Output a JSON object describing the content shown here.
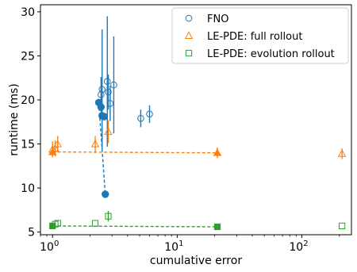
{
  "chart_data": {
    "type": "scatter",
    "xscale": "log",
    "xlabel": "cumulative error",
    "ylabel": "runtime (ms)",
    "xlim": [
      0.8,
      250
    ],
    "ylim": [
      4.7,
      30.8
    ],
    "grid": false,
    "legend_position": "top-right",
    "x_ticks": [
      {
        "value": 1,
        "label": "10",
        "sup": "0"
      },
      {
        "value": 10,
        "label": "10",
        "sup": "1"
      },
      {
        "value": 100,
        "label": "10",
        "sup": "2"
      }
    ],
    "y_ticks": [
      5,
      10,
      15,
      20,
      25,
      30
    ],
    "series": [
      {
        "name": "FNO",
        "color": "#1f77b4",
        "marker": "circle",
        "open_points": [
          {
            "x": 2.45,
            "y": 20.6,
            "yerr": 2.0
          },
          {
            "x": 2.5,
            "y": 21.2,
            "yerr": 6.8
          },
          {
            "x": 2.75,
            "y": 22.1,
            "yerr": 7.4
          },
          {
            "x": 2.8,
            "y": 20.9,
            "yerr": 2.0
          },
          {
            "x": 2.9,
            "y": 19.6,
            "yerr": 2.0
          },
          {
            "x": 3.1,
            "y": 21.7,
            "yerr": 5.5
          },
          {
            "x": 5.1,
            "y": 17.9,
            "yerr": 1.0
          },
          {
            "x": 6.0,
            "y": 18.4,
            "yerr": 1.0
          }
        ],
        "filled_points": [
          {
            "x": 2.35,
            "y": 19.7,
            "yerr": 0.4
          },
          {
            "x": 2.45,
            "y": 19.2,
            "yerr": 0.4
          },
          {
            "x": 2.5,
            "y": 18.2,
            "yerr": 0.4
          },
          {
            "x": 2.6,
            "y": 18.1,
            "yerr": 0.4
          },
          {
            "x": 2.65,
            "y": 9.3,
            "yerr": 0.4
          }
        ],
        "dashed_line": [
          {
            "x": 2.35,
            "y": 19.7
          },
          {
            "x": 2.65,
            "y": 9.3
          }
        ]
      },
      {
        "name": "LE-PDE: full rollout",
        "color": "#ff7f0e",
        "marker": "triangle",
        "open_points": [
          {
            "x": 1.0,
            "y": 14.4,
            "yerr": 0.9
          },
          {
            "x": 1.05,
            "y": 14.5,
            "yerr": 0.9
          },
          {
            "x": 1.1,
            "y": 15.0,
            "yerr": 0.9
          },
          {
            "x": 2.2,
            "y": 15.0,
            "yerr": 0.9
          },
          {
            "x": 2.8,
            "y": 16.4,
            "yerr": 1.3
          },
          {
            "x": 210,
            "y": 13.9,
            "yerr": 0.6
          }
        ],
        "filled_points": [
          {
            "x": 1.0,
            "y": 14.1,
            "yerr": 0.6
          },
          {
            "x": 21,
            "y": 14.0,
            "yerr": 0.6
          }
        ],
        "dashed_line": [
          {
            "x": 1.0,
            "y": 14.1
          },
          {
            "x": 21,
            "y": 14.0
          }
        ]
      },
      {
        "name": "LE-PDE: evolution rollout",
        "color": "#2ca02c",
        "marker": "square",
        "open_points": [
          {
            "x": 1.05,
            "y": 5.9,
            "yerr": 0.0
          },
          {
            "x": 1.1,
            "y": 6.0,
            "yerr": 0.0
          },
          {
            "x": 2.2,
            "y": 6.0,
            "yerr": 0.0
          },
          {
            "x": 2.8,
            "y": 6.8,
            "yerr": 0.6
          },
          {
            "x": 210,
            "y": 5.7,
            "yerr": 0.0
          }
        ],
        "filled_points": [
          {
            "x": 1.0,
            "y": 5.7,
            "yerr": 0.2
          },
          {
            "x": 21,
            "y": 5.6,
            "yerr": 0.2
          }
        ],
        "dashed_line": [
          {
            "x": 1.0,
            "y": 5.7
          },
          {
            "x": 21,
            "y": 5.6
          }
        ]
      }
    ]
  }
}
